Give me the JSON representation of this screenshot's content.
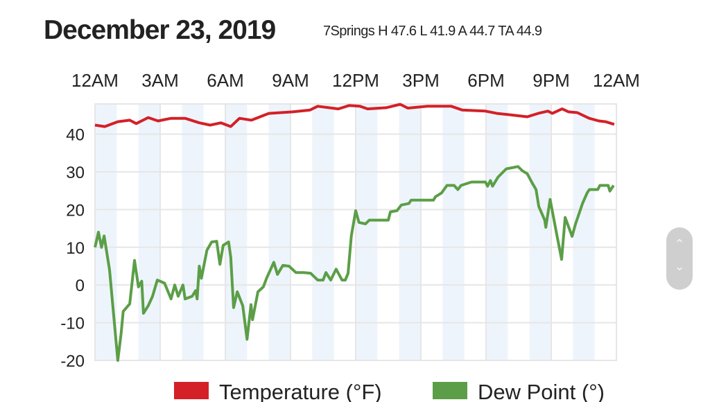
{
  "header": {
    "title": "December 23, 2019",
    "subtitle": "7Springs H 47.6 L 41.9 A 44.7 TA 44.9"
  },
  "chart_data": {
    "type": "line",
    "title": "December 23, 2019",
    "subtitle": "7Springs H 47.6 L 41.9 A 44.7 TA 44.9",
    "xlabel": "",
    "ylabel": "",
    "x_unit": "hours since midnight",
    "xlim": [
      0,
      24
    ],
    "ylim": [
      -20,
      48
    ],
    "x_ticks": [
      {
        "h": 0,
        "label": "12AM"
      },
      {
        "h": 3,
        "label": "3AM"
      },
      {
        "h": 6,
        "label": "6AM"
      },
      {
        "h": 9,
        "label": "9AM"
      },
      {
        "h": 12,
        "label": "12PM"
      },
      {
        "h": 15,
        "label": "3PM"
      },
      {
        "h": 18,
        "label": "6PM"
      },
      {
        "h": 21,
        "label": "9PM"
      },
      {
        "h": 24,
        "label": "12AM"
      }
    ],
    "x_tick_position": "top",
    "y_ticks": [
      40,
      30,
      20,
      10,
      0,
      -10,
      -20
    ],
    "grid": true,
    "shaded_bands": "alternating hours",
    "legend_position": "bottom",
    "series": [
      {
        "name": "Temperature (°F)",
        "color": "#d42027",
        "points": [
          [
            0,
            42.4
          ],
          [
            0.45,
            42.0
          ],
          [
            1.05,
            43.3
          ],
          [
            1.6,
            43.7
          ],
          [
            1.9,
            42.8
          ],
          [
            2.45,
            44.4
          ],
          [
            2.9,
            43.5
          ],
          [
            3.5,
            44.2
          ],
          [
            4.15,
            44.2
          ],
          [
            4.8,
            43.0
          ],
          [
            5.3,
            42.4
          ],
          [
            5.8,
            43.0
          ],
          [
            6.25,
            42.0
          ],
          [
            6.65,
            44.2
          ],
          [
            7.2,
            43.7
          ],
          [
            8.0,
            45.5
          ],
          [
            9.1,
            45.9
          ],
          [
            9.9,
            46.4
          ],
          [
            10.25,
            47.4
          ],
          [
            11.2,
            46.7
          ],
          [
            11.7,
            47.6
          ],
          [
            12.2,
            47.4
          ],
          [
            12.55,
            46.7
          ],
          [
            13.4,
            47.0
          ],
          [
            14.05,
            47.9
          ],
          [
            14.4,
            46.9
          ],
          [
            15.3,
            47.4
          ],
          [
            16.4,
            47.4
          ],
          [
            16.9,
            46.4
          ],
          [
            17.97,
            46.1
          ],
          [
            18.5,
            45.5
          ],
          [
            19.0,
            45.2
          ],
          [
            19.9,
            44.6
          ],
          [
            20.4,
            45.5
          ],
          [
            20.85,
            46.1
          ],
          [
            21.05,
            45.5
          ],
          [
            21.5,
            46.7
          ],
          [
            21.8,
            45.9
          ],
          [
            22.2,
            45.7
          ],
          [
            22.75,
            44.2
          ],
          [
            23.2,
            43.5
          ],
          [
            23.5,
            43.3
          ],
          [
            23.9,
            42.6
          ]
        ]
      },
      {
        "name": "Dew Point (°)",
        "color": "#5b9e47",
        "points": [
          [
            0,
            10
          ],
          [
            0.16,
            14
          ],
          [
            0.3,
            10
          ],
          [
            0.42,
            13
          ],
          [
            0.67,
            4
          ],
          [
            1.05,
            -20
          ],
          [
            1.2,
            -13
          ],
          [
            1.3,
            -7
          ],
          [
            1.6,
            -5
          ],
          [
            1.82,
            6.5
          ],
          [
            2.0,
            -0.5
          ],
          [
            2.15,
            1
          ],
          [
            2.23,
            -7.5
          ],
          [
            2.45,
            -5.5
          ],
          [
            2.65,
            -3
          ],
          [
            2.87,
            1.3
          ],
          [
            3.2,
            0.5
          ],
          [
            3.5,
            -3.7
          ],
          [
            3.67,
            0
          ],
          [
            3.83,
            -3
          ],
          [
            4.05,
            0
          ],
          [
            4.15,
            -3.7
          ],
          [
            4.47,
            -3
          ],
          [
            4.63,
            -1.5
          ],
          [
            4.7,
            -3.7
          ],
          [
            4.8,
            5
          ],
          [
            4.9,
            1.8
          ],
          [
            5.15,
            9.2
          ],
          [
            5.37,
            11.4
          ],
          [
            5.6,
            11.6
          ],
          [
            5.75,
            5.5
          ],
          [
            5.9,
            10.5
          ],
          [
            6.15,
            11.4
          ],
          [
            6.25,
            7.4
          ],
          [
            6.38,
            -6
          ],
          [
            6.55,
            -1.8
          ],
          [
            6.8,
            -5.5
          ],
          [
            7.0,
            -14.4
          ],
          [
            7.18,
            -5.2
          ],
          [
            7.25,
            -9.2
          ],
          [
            7.5,
            -1.8
          ],
          [
            7.75,
            -0.5
          ],
          [
            7.9,
            1.8
          ],
          [
            8.0,
            3.1
          ],
          [
            8.23,
            6
          ],
          [
            8.4,
            2.8
          ],
          [
            8.65,
            5.2
          ],
          [
            8.93,
            5
          ],
          [
            9.25,
            3.3
          ],
          [
            9.6,
            3.3
          ],
          [
            9.93,
            3.1
          ],
          [
            10.25,
            1.3
          ],
          [
            10.5,
            1.3
          ],
          [
            10.63,
            3.3
          ],
          [
            10.85,
            1.3
          ],
          [
            11.1,
            4.2
          ],
          [
            11.37,
            1.3
          ],
          [
            11.52,
            1.3
          ],
          [
            11.65,
            3.1
          ],
          [
            11.8,
            13
          ],
          [
            12.0,
            19.7
          ],
          [
            12.15,
            16.6
          ],
          [
            12.45,
            16.2
          ],
          [
            12.63,
            17.2
          ],
          [
            13.5,
            17.2
          ],
          [
            13.6,
            19.4
          ],
          [
            13.9,
            19.7
          ],
          [
            14.1,
            21.2
          ],
          [
            14.45,
            21.6
          ],
          [
            14.55,
            22.5
          ],
          [
            15.58,
            22.5
          ],
          [
            15.67,
            23.4
          ],
          [
            15.95,
            24.4
          ],
          [
            16.2,
            26.4
          ],
          [
            16.53,
            26.4
          ],
          [
            16.7,
            25.3
          ],
          [
            16.85,
            26.4
          ],
          [
            17.33,
            27.3
          ],
          [
            17.97,
            27.3
          ],
          [
            18.07,
            26.2
          ],
          [
            18.2,
            27.7
          ],
          [
            18.3,
            26.2
          ],
          [
            18.55,
            28.6
          ],
          [
            18.93,
            30.8
          ],
          [
            19.47,
            31.4
          ],
          [
            19.67,
            30.3
          ],
          [
            19.9,
            29.5
          ],
          [
            20.1,
            27.3
          ],
          [
            20.3,
            25.3
          ],
          [
            20.43,
            20.8
          ],
          [
            20.7,
            17.2
          ],
          [
            20.75,
            15.3
          ],
          [
            20.95,
            22.7
          ],
          [
            21.27,
            12.9
          ],
          [
            21.48,
            6.8
          ],
          [
            21.64,
            17.9
          ],
          [
            21.96,
            12.9
          ],
          [
            22.12,
            16.2
          ],
          [
            22.44,
            21.6
          ],
          [
            22.66,
            24.5
          ],
          [
            22.76,
            25.3
          ],
          [
            23.14,
            25.3
          ],
          [
            23.24,
            26.4
          ],
          [
            23.62,
            26.4
          ],
          [
            23.7,
            24.9
          ],
          [
            23.87,
            26.4
          ]
        ]
      }
    ]
  },
  "scroll_control": {
    "up_icon": "chevron-up",
    "down_icon": "chevron-down"
  }
}
